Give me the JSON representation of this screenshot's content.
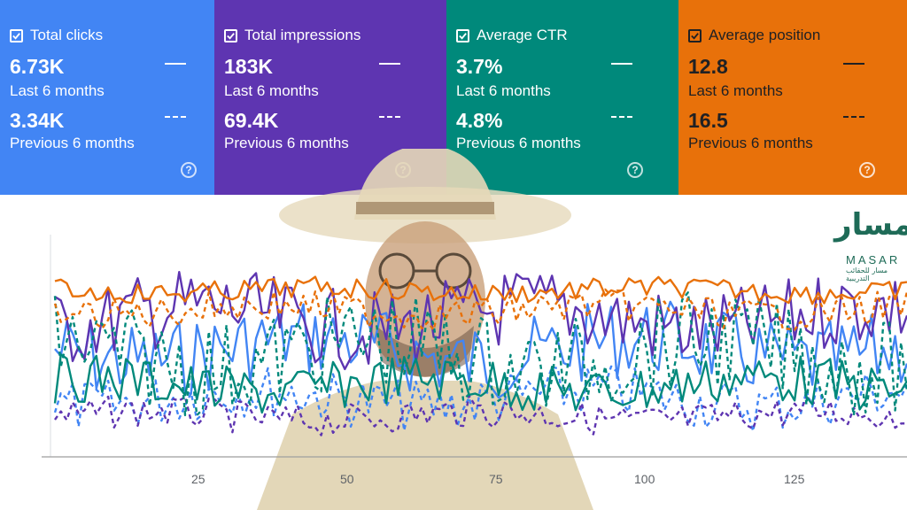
{
  "metrics": [
    {
      "id": "clicks",
      "label": "Total clicks",
      "value_last": "6.73K",
      "label_last": "Last 6 months",
      "value_prev": "3.34K",
      "label_prev": "Previous 6 months",
      "color": "#4285f4"
    },
    {
      "id": "impressions",
      "label": "Total impressions",
      "value_last": "183K",
      "label_last": "Last 6 months",
      "value_prev": "69.4K",
      "label_prev": "Previous 6 months",
      "color": "#5e35b1"
    },
    {
      "id": "ctr",
      "label": "Average CTR",
      "value_last": "3.7%",
      "label_last": "Last 6 months",
      "value_prev": "4.8%",
      "label_prev": "Previous 6 months",
      "color": "#00897b"
    },
    {
      "id": "position",
      "label": "Average position",
      "value_last": "12.8",
      "label_last": "Last 6 months",
      "value_prev": "16.5",
      "label_prev": "Previous 6 months",
      "color": "#e8710a"
    }
  ],
  "help_glyph": "?",
  "logo": {
    "arabic": "مسار",
    "latin": "MASAR",
    "subtitle": "مسار للحقائب التدريبية"
  },
  "chart_data": {
    "type": "line",
    "x_ticks": [
      "25",
      "50",
      "75",
      "100",
      "125"
    ],
    "x_range": [
      1,
      145
    ],
    "series": [
      {
        "name": "Total clicks (last 6 months)",
        "color": "#4285f4",
        "style": "solid"
      },
      {
        "name": "Total clicks (previous 6 months)",
        "color": "#4285f4",
        "style": "dashed"
      },
      {
        "name": "Total impressions (last 6 months)",
        "color": "#5e35b1",
        "style": "solid"
      },
      {
        "name": "Total impressions (previous 6 months)",
        "color": "#5e35b1",
        "style": "dashed"
      },
      {
        "name": "Average CTR (last 6 months)",
        "color": "#00897b",
        "style": "solid"
      },
      {
        "name": "Average CTR (previous 6 months)",
        "color": "#00897b",
        "style": "dashed"
      },
      {
        "name": "Average position (last 6 months)",
        "color": "#e8710a",
        "style": "solid"
      },
      {
        "name": "Average position (previous 6 months)",
        "color": "#e8710a",
        "style": "dashed"
      }
    ]
  }
}
